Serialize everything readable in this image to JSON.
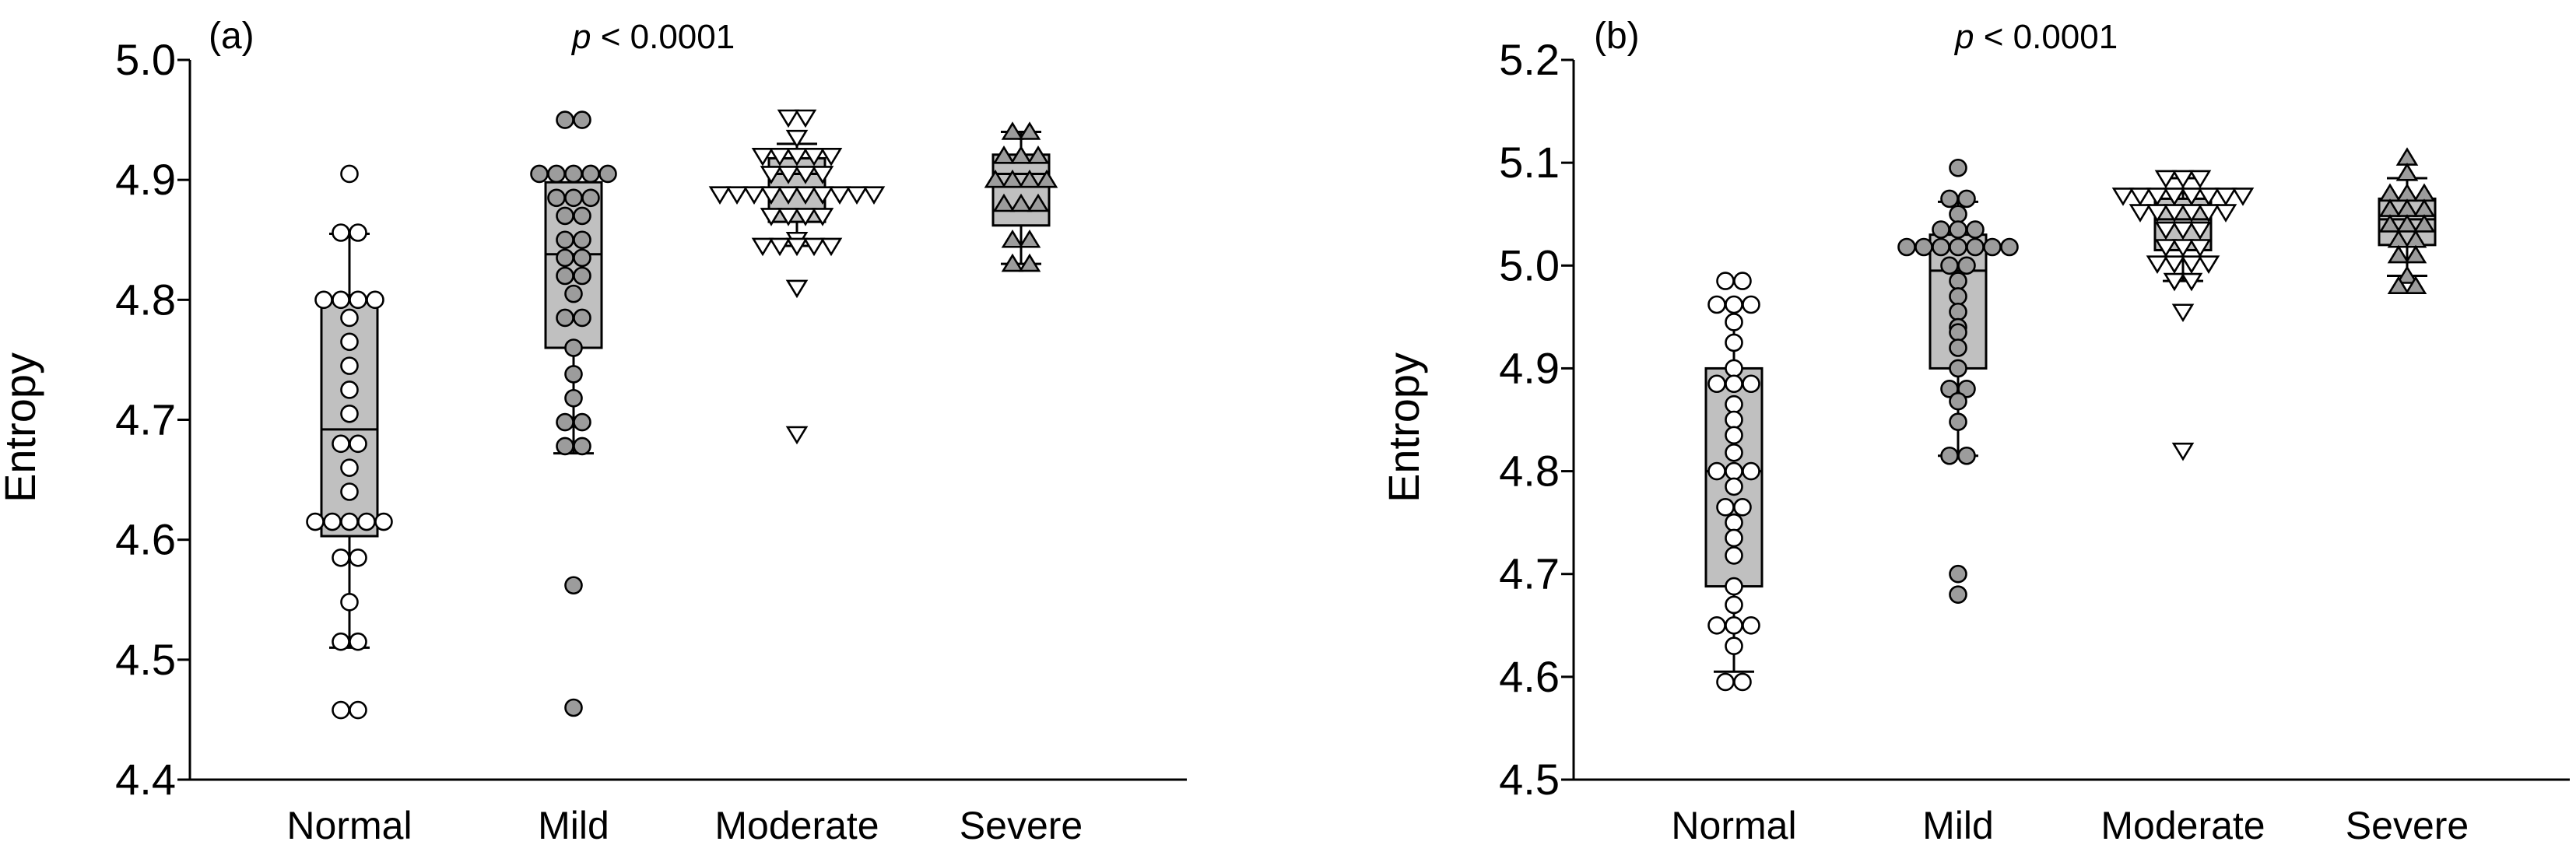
{
  "chart_data": [
    {
      "type": "box",
      "panel_label": "(a)",
      "annotation": {
        "italic": "p",
        "text": " < 0.0001"
      },
      "ylabel": "Entropy",
      "ylim": [
        4.4,
        5.0
      ],
      "yticks": [
        "4.4",
        "4.5",
        "4.6",
        "4.7",
        "4.8",
        "4.9",
        "5.0"
      ],
      "categories": [
        "Normal",
        "Mild",
        "Moderate",
        "Severe"
      ],
      "groups": [
        {
          "name": "Normal",
          "marker": "circle",
          "fill": "#ffffff",
          "whisker_low": 4.51,
          "q1": 4.603,
          "median": 4.692,
          "q3": 4.798,
          "whisker_high": 4.855,
          "points": [
            4.905,
            4.856,
            4.856,
            4.8,
            4.8,
            4.8,
            4.8,
            4.785,
            4.765,
            4.745,
            4.725,
            4.705,
            4.68,
            4.68,
            4.66,
            4.64,
            4.615,
            4.615,
            4.615,
            4.615,
            4.615,
            4.585,
            4.585,
            4.548,
            4.515,
            4.515,
            4.458,
            4.458
          ]
        },
        {
          "name": "Mild",
          "marker": "circle",
          "fill": "#9c9c9c",
          "whisker_low": 4.672,
          "q1": 4.76,
          "median": 4.838,
          "q3": 4.898,
          "whisker_high": 4.906,
          "points": [
            4.95,
            4.95,
            4.905,
            4.905,
            4.905,
            4.905,
            4.905,
            4.885,
            4.885,
            4.885,
            4.87,
            4.87,
            4.85,
            4.85,
            4.835,
            4.835,
            4.82,
            4.82,
            4.805,
            4.785,
            4.785,
            4.76,
            4.738,
            4.718,
            4.698,
            4.698,
            4.678,
            4.678,
            4.562,
            4.46
          ]
        },
        {
          "name": "Moderate",
          "marker": "triangle-down",
          "fill": "#ffffff",
          "whisker_low": 4.845,
          "q1": 4.865,
          "median": 4.905,
          "q3": 4.918,
          "whisker_high": 4.93,
          "points": [
            4.952,
            4.952,
            4.935,
            4.92,
            4.92,
            4.92,
            4.92,
            4.92,
            4.905,
            4.905,
            4.905,
            4.905,
            4.888,
            4.888,
            4.888,
            4.888,
            4.888,
            4.888,
            4.888,
            4.888,
            4.888,
            4.888,
            4.87,
            4.87,
            4.87,
            4.87,
            4.85,
            4.845,
            4.845,
            4.845,
            4.845,
            4.845,
            4.81,
            4.688
          ]
        },
        {
          "name": "Severe",
          "marker": "triangle-up",
          "fill": "#9c9c9c",
          "whisker_low": 4.83,
          "q1": 4.862,
          "median": 4.905,
          "q3": 4.921,
          "whisker_high": 4.94,
          "points": [
            4.94,
            4.94,
            4.92,
            4.92,
            4.92,
            4.9,
            4.9,
            4.9,
            4.9,
            4.88,
            4.88,
            4.88,
            4.85,
            4.85,
            4.83,
            4.83
          ]
        }
      ]
    },
    {
      "type": "box",
      "panel_label": "(b)",
      "annotation": {
        "italic": "p",
        "text": " < 0.0001"
      },
      "ylabel": "Entropy",
      "ylim": [
        4.5,
        5.2
      ],
      "yticks": [
        "4.5",
        "4.6",
        "4.7",
        "4.8",
        "4.9",
        "5.0",
        "5.1",
        "5.2"
      ],
      "categories": [
        "Normal",
        "Mild",
        "Moderate",
        "Severe"
      ],
      "groups": [
        {
          "name": "Normal",
          "marker": "circle",
          "fill": "#ffffff",
          "whisker_low": 4.605,
          "q1": 4.688,
          "median": 4.8,
          "q3": 4.9,
          "whisker_high": 4.962,
          "points": [
            4.985,
            4.985,
            4.962,
            4.962,
            4.962,
            4.945,
            4.925,
            4.9,
            4.885,
            4.885,
            4.885,
            4.865,
            4.85,
            4.835,
            4.818,
            4.8,
            4.8,
            4.8,
            4.785,
            4.765,
            4.765,
            4.75,
            4.735,
            4.718,
            4.688,
            4.67,
            4.65,
            4.65,
            4.65,
            4.63,
            4.595,
            4.595
          ]
        },
        {
          "name": "Mild",
          "marker": "circle",
          "fill": "#9c9c9c",
          "whisker_low": 4.815,
          "q1": 4.9,
          "median": 4.995,
          "q3": 5.03,
          "whisker_high": 5.062,
          "points": [
            5.095,
            5.065,
            5.065,
            5.05,
            5.035,
            5.035,
            5.035,
            5.018,
            5.018,
            5.018,
            5.018,
            5.018,
            5.018,
            5.018,
            5.0,
            5.0,
            4.985,
            4.97,
            4.955,
            4.94,
            4.935,
            4.92,
            4.9,
            4.88,
            4.88,
            4.868,
            4.848,
            4.815,
            4.815,
            4.7,
            4.68
          ]
        },
        {
          "name": "Moderate",
          "marker": "triangle-down",
          "fill": "#ffffff",
          "whisker_low": 4.985,
          "q1": 5.015,
          "median": 5.045,
          "q3": 5.065,
          "whisker_high": 5.085,
          "points": [
            5.085,
            5.085,
            5.085,
            5.068,
            5.068,
            5.068,
            5.068,
            5.068,
            5.068,
            5.068,
            5.068,
            5.052,
            5.052,
            5.052,
            5.052,
            5.052,
            5.052,
            5.035,
            5.035,
            5.035,
            5.018,
            5.018,
            5.018,
            5.002,
            5.002,
            5.002,
            5.002,
            4.985,
            4.985,
            4.955,
            4.82
          ]
        },
        {
          "name": "Severe",
          "marker": "triangle-up",
          "fill": "#9c9c9c",
          "whisker_low": 4.99,
          "q1": 5.02,
          "median": 5.045,
          "q3": 5.065,
          "whisker_high": 5.085,
          "points": [
            5.105,
            5.09,
            5.07,
            5.07,
            5.07,
            5.055,
            5.055,
            5.055,
            5.04,
            5.04,
            5.04,
            5.025,
            5.025,
            5.01,
            5.01,
            4.99,
            4.98,
            4.98
          ]
        }
      ]
    }
  ]
}
